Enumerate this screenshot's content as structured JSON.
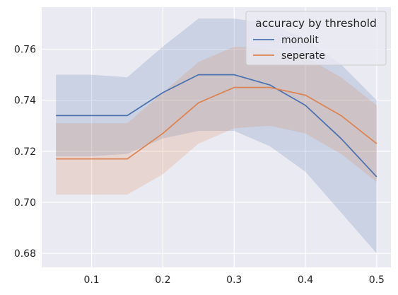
{
  "chart_data": {
    "type": "line",
    "title": "",
    "xlabel": "",
    "ylabel": "",
    "x": [
      0.05,
      0.1,
      0.15,
      0.2,
      0.25,
      0.3,
      0.35,
      0.4,
      0.45,
      0.5
    ],
    "xlim": [
      0.03,
      0.52
    ],
    "ylim": [
      0.6745,
      0.7765
    ],
    "xticks": [
      0.1,
      0.2,
      0.3,
      0.4,
      0.5
    ],
    "xtick_labels": [
      "0.1",
      "0.2",
      "0.3",
      "0.4",
      "0.5"
    ],
    "yticks": [
      0.68,
      0.7,
      0.72,
      0.74,
      0.76
    ],
    "ytick_labels": [
      "0.68",
      "0.70",
      "0.72",
      "0.74",
      "0.76"
    ],
    "grid": true,
    "background": "#eaeaf2",
    "legend": {
      "title": "accuracy by threshold",
      "position": "top-right"
    },
    "series": [
      {
        "name": "monolit",
        "color": "#4c72b0",
        "values": [
          0.734,
          0.734,
          0.734,
          0.743,
          0.75,
          0.75,
          0.746,
          0.738,
          0.725,
          0.71
        ],
        "band_lower": [
          0.718,
          0.718,
          0.719,
          0.725,
          0.728,
          0.728,
          0.722,
          0.712,
          0.696,
          0.68
        ],
        "band_upper": [
          0.75,
          0.75,
          0.749,
          0.761,
          0.772,
          0.772,
          0.77,
          0.764,
          0.754,
          0.74
        ]
      },
      {
        "name": "seperate",
        "color": "#dd8452",
        "values": [
          0.717,
          0.717,
          0.717,
          0.727,
          0.739,
          0.745,
          0.745,
          0.742,
          0.734,
          0.723
        ],
        "band_lower": [
          0.703,
          0.703,
          0.703,
          0.711,
          0.723,
          0.729,
          0.73,
          0.727,
          0.719,
          0.708
        ],
        "band_upper": [
          0.731,
          0.731,
          0.731,
          0.743,
          0.755,
          0.761,
          0.76,
          0.757,
          0.749,
          0.738
        ]
      }
    ]
  }
}
